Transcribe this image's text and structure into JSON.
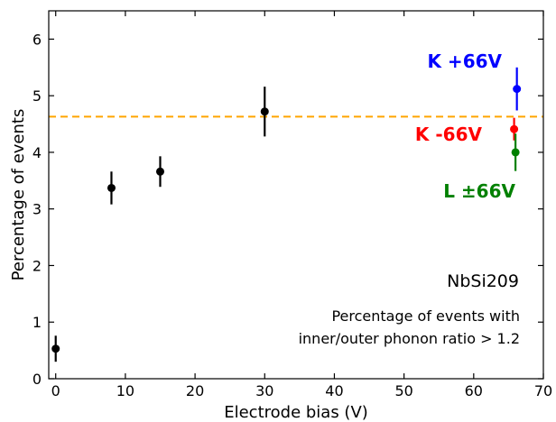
{
  "chart_data": {
    "type": "scatter",
    "xlabel": "Electrode bias (V)",
    "ylabel": "Percentage of events",
    "xlim": [
      -1,
      70
    ],
    "ylim": [
      0,
      6.5
    ],
    "xticks": [
      0,
      10,
      20,
      30,
      40,
      50,
      60,
      70
    ],
    "yticks": [
      0,
      1,
      2,
      3,
      4,
      5,
      6
    ],
    "grid": false,
    "reference_line": {
      "y": 4.63,
      "color": "#ffa500",
      "style": "dashed"
    },
    "series": [
      {
        "color": "#000000",
        "points": [
          {
            "x": 0,
            "y": 0.53,
            "err": 0.23
          },
          {
            "x": 8,
            "y": 3.37,
            "err": 0.29
          },
          {
            "x": 15,
            "y": 3.66,
            "err": 0.27
          },
          {
            "x": 30,
            "y": 4.72,
            "err": 0.44
          }
        ]
      },
      {
        "name": "K +66V",
        "color": "#0000ff",
        "points": [
          {
            "x": 66.2,
            "y": 5.12,
            "err": 0.38
          }
        ]
      },
      {
        "name": "K -66V",
        "color": "#ff0000",
        "points": [
          {
            "x": 65.8,
            "y": 4.41,
            "err": 0.2
          }
        ]
      },
      {
        "name": "L ±66V",
        "color": "#008000",
        "points": [
          {
            "x": 66.0,
            "y": 4.0,
            "err": 0.33
          }
        ]
      }
    ],
    "annotations": {
      "detector": "NbSi209",
      "note_line1": "Percentage of events with",
      "note_line2": "inner/outer phonon ratio > 1.2"
    }
  }
}
